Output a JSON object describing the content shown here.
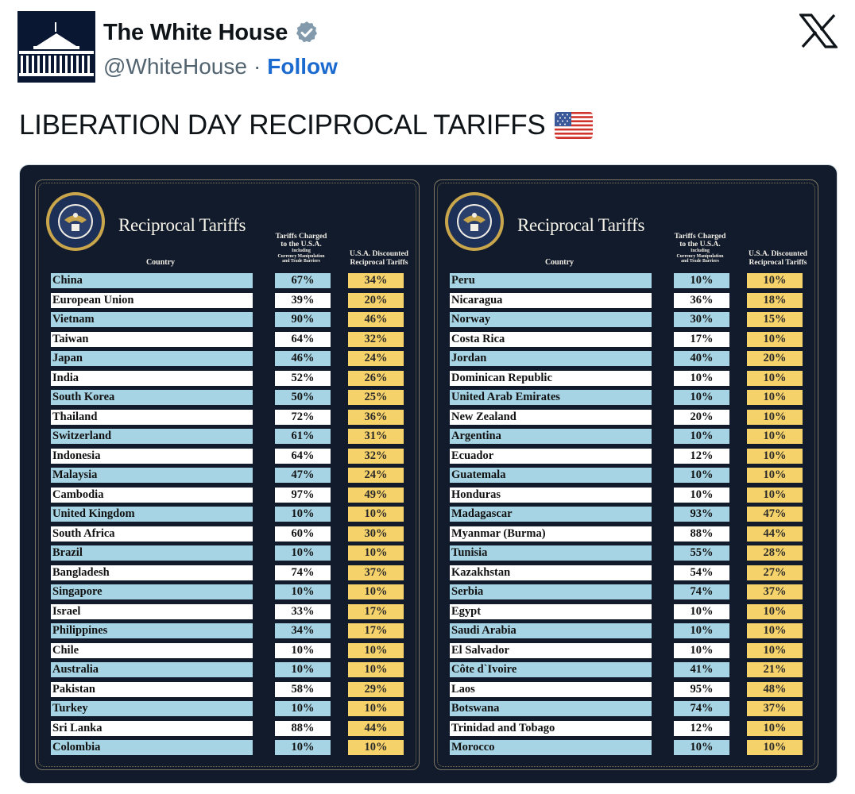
{
  "author": {
    "name": "The White House",
    "handle": "@WhiteHouse",
    "separator": "·",
    "follow_label": "Follow"
  },
  "tweet": {
    "text": "LIBERATION DAY RECIPROCAL TARIFFS",
    "emoji": "us-flag-icon"
  },
  "image": {
    "panel_title": "Reciprocal Tariffs",
    "col_country": "Country",
    "col_charged_line1": "Tariffs Charged",
    "col_charged_line2": "to the U.S.A.",
    "col_charged_sub1": "Including",
    "col_charged_sub2": "Currency Manipulation",
    "col_charged_sub3": "and Trade Barriers",
    "col_discount_line1": "U.S.A. Discounted",
    "col_discount_line2": "Reciprocal Tariffs",
    "seal_text": "SEAL OF THE PRESIDENT OF THE UNITED STATES",
    "left_rows": [
      [
        "China",
        "67%",
        "34%"
      ],
      [
        "European Union",
        "39%",
        "20%"
      ],
      [
        "Vietnam",
        "90%",
        "46%"
      ],
      [
        "Taiwan",
        "64%",
        "32%"
      ],
      [
        "Japan",
        "46%",
        "24%"
      ],
      [
        "India",
        "52%",
        "26%"
      ],
      [
        "South Korea",
        "50%",
        "25%"
      ],
      [
        "Thailand",
        "72%",
        "36%"
      ],
      [
        "Switzerland",
        "61%",
        "31%"
      ],
      [
        "Indonesia",
        "64%",
        "32%"
      ],
      [
        "Malaysia",
        "47%",
        "24%"
      ],
      [
        "Cambodia",
        "97%",
        "49%"
      ],
      [
        "United Kingdom",
        "10%",
        "10%"
      ],
      [
        "South Africa",
        "60%",
        "30%"
      ],
      [
        "Brazil",
        "10%",
        "10%"
      ],
      [
        "Bangladesh",
        "74%",
        "37%"
      ],
      [
        "Singapore",
        "10%",
        "10%"
      ],
      [
        "Israel",
        "33%",
        "17%"
      ],
      [
        "Philippines",
        "34%",
        "17%"
      ],
      [
        "Chile",
        "10%",
        "10%"
      ],
      [
        "Australia",
        "10%",
        "10%"
      ],
      [
        "Pakistan",
        "58%",
        "29%"
      ],
      [
        "Turkey",
        "10%",
        "10%"
      ],
      [
        "Sri Lanka",
        "88%",
        "44%"
      ],
      [
        "Colombia",
        "10%",
        "10%"
      ]
    ],
    "right_rows": [
      [
        "Peru",
        "10%",
        "10%"
      ],
      [
        "Nicaragua",
        "36%",
        "18%"
      ],
      [
        "Norway",
        "30%",
        "15%"
      ],
      [
        "Costa Rica",
        "17%",
        "10%"
      ],
      [
        "Jordan",
        "40%",
        "20%"
      ],
      [
        "Dominican Republic",
        "10%",
        "10%"
      ],
      [
        "United Arab Emirates",
        "10%",
        "10%"
      ],
      [
        "New Zealand",
        "20%",
        "10%"
      ],
      [
        "Argentina",
        "10%",
        "10%"
      ],
      [
        "Ecuador",
        "12%",
        "10%"
      ],
      [
        "Guatemala",
        "10%",
        "10%"
      ],
      [
        "Honduras",
        "10%",
        "10%"
      ],
      [
        "Madagascar",
        "93%",
        "47%"
      ],
      [
        "Myanmar (Burma)",
        "88%",
        "44%"
      ],
      [
        "Tunisia",
        "55%",
        "28%"
      ],
      [
        "Kazakhstan",
        "54%",
        "27%"
      ],
      [
        "Serbia",
        "74%",
        "37%"
      ],
      [
        "Egypt",
        "10%",
        "10%"
      ],
      [
        "Saudi Arabia",
        "10%",
        "10%"
      ],
      [
        "El Salvador",
        "10%",
        "10%"
      ],
      [
        "Côte d`Ivoire",
        "41%",
        "21%"
      ],
      [
        "Laos",
        "95%",
        "48%"
      ],
      [
        "Botswana",
        "74%",
        "37%"
      ],
      [
        "Trinidad and Tobago",
        "12%",
        "10%"
      ],
      [
        "Morocco",
        "10%",
        "10%"
      ]
    ]
  },
  "colors": {
    "card_bg": "#121b2c",
    "row_blue": "#a7d4e4",
    "row_white": "#ffffff",
    "discount_yellow": "#f6d26b",
    "follow_blue": "#1a6ad0"
  }
}
